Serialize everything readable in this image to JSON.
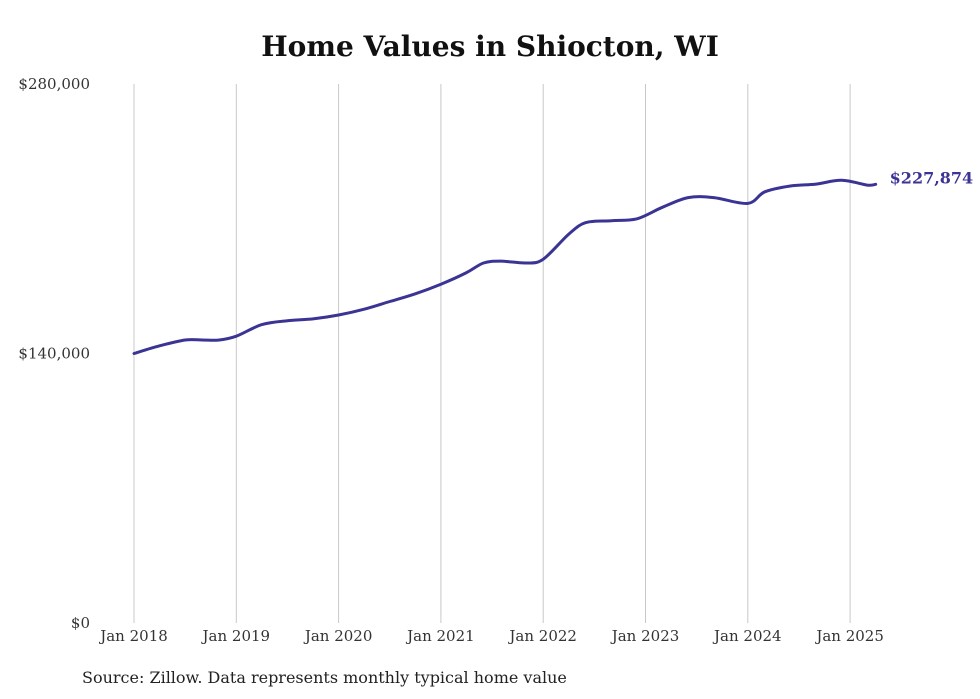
{
  "chart_data": {
    "type": "line",
    "title": "Home Values in Shiocton, WI",
    "xlabel": "",
    "ylabel": "",
    "ylim": [
      0,
      280000
    ],
    "yticks": [
      0,
      140000,
      280000
    ],
    "ytick_labels": [
      "$0",
      "$140,000",
      "$280,000"
    ],
    "xticks": [
      "2018-01",
      "2019-01",
      "2020-01",
      "2021-01",
      "2022-01",
      "2023-01",
      "2024-01",
      "2025-01"
    ],
    "xtick_labels": [
      "Jan 2018",
      "Jan 2019",
      "Jan 2020",
      "Jan 2021",
      "Jan 2022",
      "Jan 2023",
      "Jan 2024",
      "Jan 2025"
    ],
    "x_range": [
      "2018-01",
      "2025-04"
    ],
    "grid": "vertical",
    "line_color": "#3b3494",
    "end_label": "$227,874",
    "series": [
      {
        "x": [
          "2018-01",
          "2018-04",
          "2018-07",
          "2018-09",
          "2018-11",
          "2019-01",
          "2019-04",
          "2019-07",
          "2019-10",
          "2020-01",
          "2020-04",
          "2020-07",
          "2020-10",
          "2021-01",
          "2021-04",
          "2021-06",
          "2021-08",
          "2021-11",
          "2022-01",
          "2022-04",
          "2022-06",
          "2022-09",
          "2022-12",
          "2023-03",
          "2023-06",
          "2023-09",
          "2024-01",
          "2024-03",
          "2024-06",
          "2024-09",
          "2024-12",
          "2025-03",
          "2025-04"
        ],
        "y": [
          140000,
          144000,
          147000,
          147000,
          147000,
          149000,
          155000,
          157000,
          158000,
          160000,
          163000,
          167000,
          171000,
          176000,
          182000,
          187000,
          188000,
          187000,
          189000,
          202000,
          208000,
          209000,
          210000,
          216000,
          221000,
          221000,
          218000,
          224000,
          227000,
          228000,
          230000,
          227500,
          227874
        ]
      }
    ]
  },
  "footer": {
    "source": "Source: Zillow. Data represents monthly typical home value"
  }
}
